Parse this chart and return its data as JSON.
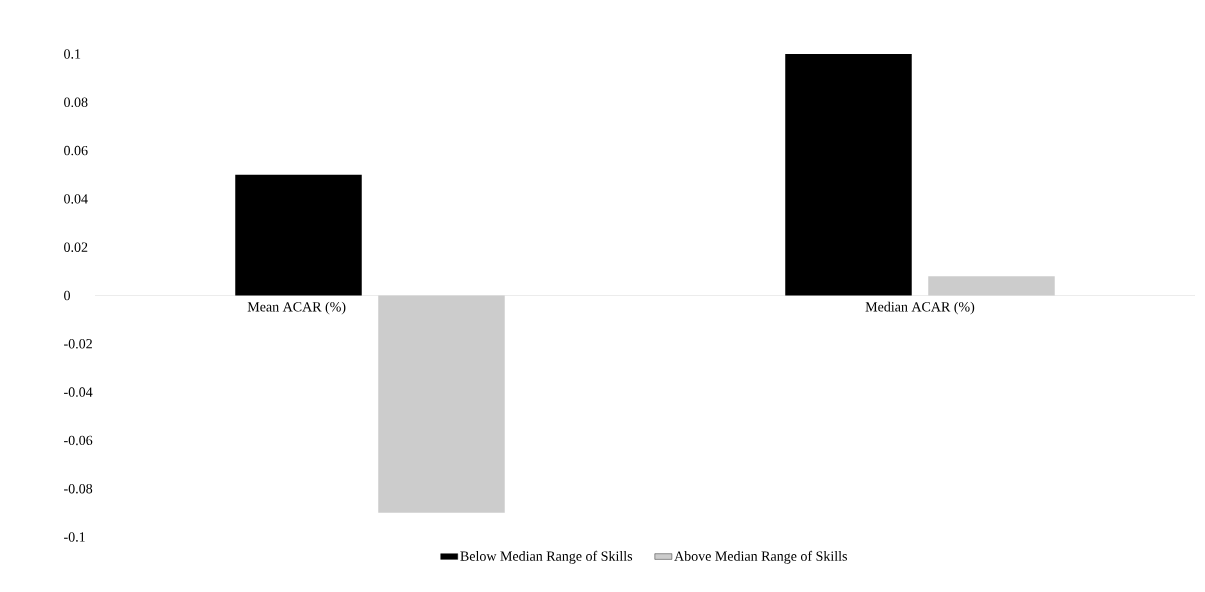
{
  "chart_data": {
    "type": "bar",
    "categories": [
      "Mean ACAR (%)",
      "Median ACAR (%)"
    ],
    "series": [
      {
        "name": "Below Median Range of Skills",
        "color": "#000000",
        "values": [
          0.05,
          0.1
        ]
      },
      {
        "name": "Above Median Range of Skills",
        "color": "#cccccc",
        "values": [
          -0.09,
          0.008
        ]
      }
    ],
    "ylim": [
      -0.1,
      0.1
    ],
    "yticks": [
      -0.1,
      -0.08,
      -0.06,
      -0.04,
      -0.02,
      0,
      0.02,
      0.04,
      0.06,
      0.08,
      0.1
    ],
    "grid": false,
    "legend": "bottom"
  }
}
